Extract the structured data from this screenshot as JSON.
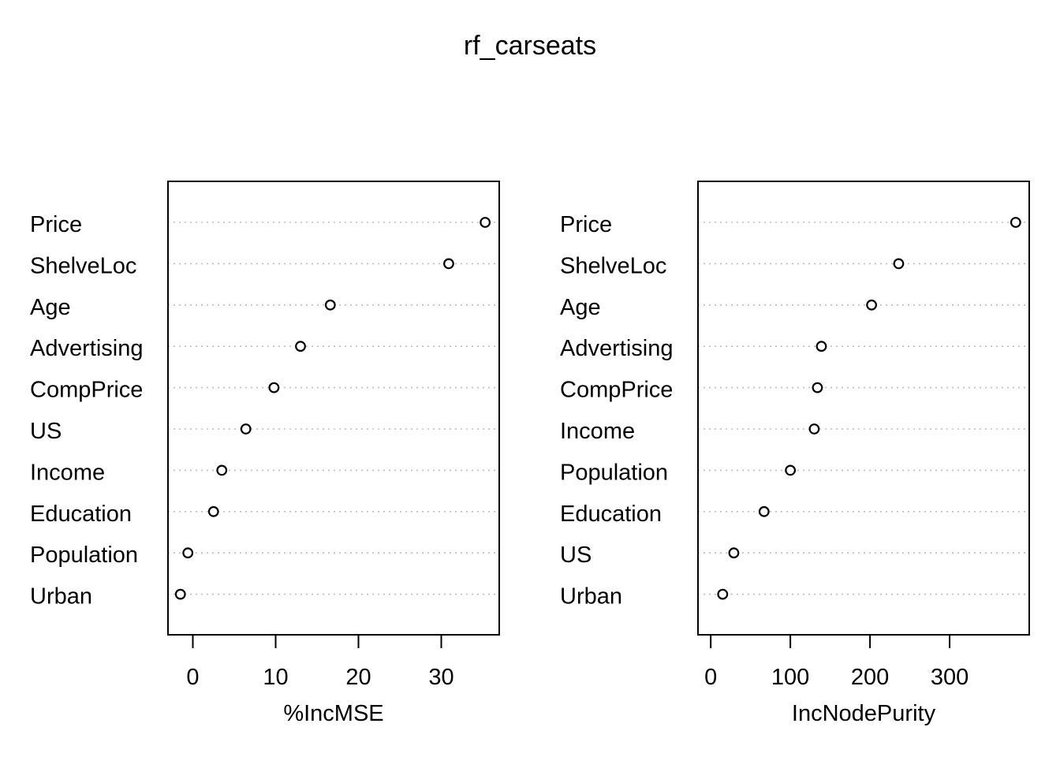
{
  "title": "rf_carseats",
  "chart_data": [
    {
      "type": "scatter",
      "xlabel": "%IncMSE",
      "xticks": [
        0,
        10,
        20,
        30
      ],
      "xlim": [
        -3,
        37
      ],
      "categories": [
        "Price",
        "ShelveLoc",
        "Age",
        "Advertising",
        "CompPrice",
        "US",
        "Income",
        "Education",
        "Population",
        "Urban"
      ],
      "values": [
        35.3,
        30.9,
        16.6,
        13.0,
        9.8,
        6.4,
        3.5,
        2.5,
        -0.6,
        -1.5
      ]
    },
    {
      "type": "scatter",
      "xlabel": "IncNodePurity",
      "xticks": [
        0,
        100,
        200,
        300
      ],
      "xlim": [
        -16,
        400
      ],
      "categories": [
        "Price",
        "ShelveLoc",
        "Age",
        "Advertising",
        "CompPrice",
        "Income",
        "Population",
        "Education",
        "US",
        "Urban"
      ],
      "values": [
        383,
        236,
        202,
        139,
        134,
        130,
        100,
        67,
        29,
        15
      ]
    }
  ]
}
